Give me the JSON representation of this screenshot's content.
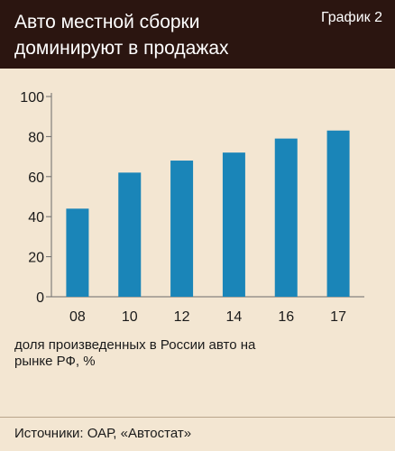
{
  "header": {
    "title": "Авто местной сборки доминируют в продажах",
    "chart_number": "График 2"
  },
  "note": "доля произведенных в России авто на рынке РФ,  %",
  "source": "Источники: ОАР, «Автостат»",
  "colors": {
    "header_bg": "#2b1510",
    "background": "#f3e6d2",
    "bar": "#1a85b8"
  },
  "chart_data": {
    "type": "bar",
    "categories": [
      "08",
      "10",
      "12",
      "14",
      "16",
      "17"
    ],
    "values": [
      44,
      62,
      68,
      72,
      79,
      83
    ],
    "ylim": [
      0,
      100
    ],
    "yticks": [
      0,
      20,
      40,
      60,
      80,
      100
    ],
    "title": "Авто местной сборки доминируют в продажах",
    "xlabel": "",
    "ylabel": "",
    "grid": false
  }
}
